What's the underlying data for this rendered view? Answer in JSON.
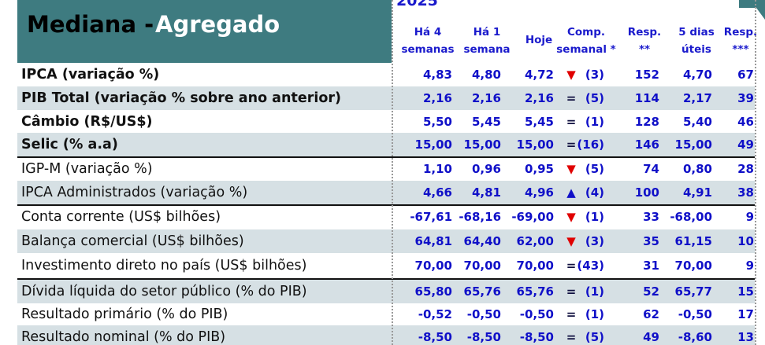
{
  "header": {
    "title": [
      "Mediana -",
      "Agregado"
    ],
    "year": "2025"
  },
  "columns": [
    [
      "Há 4",
      "semanas"
    ],
    [
      "Há 1",
      "semana"
    ],
    [
      "Hoje"
    ],
    [
      "Comp.",
      "semanal *"
    ],
    [
      "Resp.",
      "**"
    ],
    [
      "5 dias",
      "úteis"
    ],
    [
      "Resp.",
      "***"
    ]
  ],
  "rows": [
    {
      "label": "IPCA (variação %)",
      "bold": true,
      "trend_color": "#e00000",
      "cells": [
        "4,83",
        "4,80",
        "4,72",
        "▼",
        "(3)",
        "152",
        "4,70",
        "67"
      ]
    },
    {
      "label": "PIB Total (variação % sobre ano anterior)",
      "bold": true,
      "trend_color": "#101040",
      "cells": [
        "2,16",
        "2,16",
        "2,16",
        "=",
        "(5)",
        "114",
        "2,17",
        "39"
      ]
    },
    {
      "label": "Câmbio (R$/US$)",
      "bold": true,
      "trend_color": "#101040",
      "cells": [
        "5,50",
        "5,45",
        "5,45",
        "=",
        "(1)",
        "128",
        "5,40",
        "46"
      ]
    },
    {
      "label": "Selic (% a.a)",
      "bold": true,
      "trend_color": "#101040",
      "cells": [
        "15,00",
        "15,00",
        "15,00",
        "=",
        "(16)",
        "146",
        "15,00",
        "49"
      ]
    },
    {
      "label": "IGP-M (variação %)",
      "bold": false,
      "trend_color": "#e00000",
      "cells": [
        "1,10",
        "0,96",
        "0,95",
        "▼",
        "(5)",
        "74",
        "0,80",
        "28"
      ]
    },
    {
      "label": "IPCA Administrados (variação %)",
      "bold": false,
      "trend_color": "#1010c8",
      "cells": [
        "4,66",
        "4,81",
        "4,96",
        "▲",
        "(4)",
        "100",
        "4,91",
        "38"
      ]
    },
    {
      "label": "Conta corrente (US$ bilhões)",
      "bold": false,
      "trend_color": "#e00000",
      "cells": [
        "-67,61",
        "-68,16",
        "-69,00",
        "▼",
        "(1)",
        "33",
        "-68,00",
        "9"
      ]
    },
    {
      "label": "Balança comercial (US$ bilhões)",
      "bold": false,
      "trend_color": "#e00000",
      "cells": [
        "64,81",
        "64,40",
        "62,00",
        "▼",
        "(3)",
        "35",
        "61,15",
        "10"
      ]
    },
    {
      "label": "Investimento direto no país (US$ bilhões)",
      "bold": false,
      "trend_color": "#101040",
      "cells": [
        "70,00",
        "70,00",
        "70,00",
        "=",
        "(43)",
        "31",
        "70,00",
        "9"
      ]
    },
    {
      "label": "Dívida líquida do setor público (% do PIB)",
      "bold": false,
      "trend_color": "#101040",
      "cells": [
        "65,80",
        "65,76",
        "65,76",
        "=",
        "(1)",
        "52",
        "65,77",
        "15"
      ]
    },
    {
      "label": "Resultado primário (% do PIB)",
      "bold": false,
      "trend_color": "#101040",
      "cells": [
        "-0,52",
        "-0,50",
        "-0,50",
        "=",
        "(1)",
        "62",
        "-0,50",
        "17"
      ]
    },
    {
      "label": "Resultado nominal (% do PIB)",
      "bold": false,
      "trend_color": "#101040",
      "cells": [
        "-8,50",
        "-8,50",
        "-8,50",
        "=",
        "(5)",
        "49",
        "-8,60",
        "13"
      ]
    }
  ]
}
